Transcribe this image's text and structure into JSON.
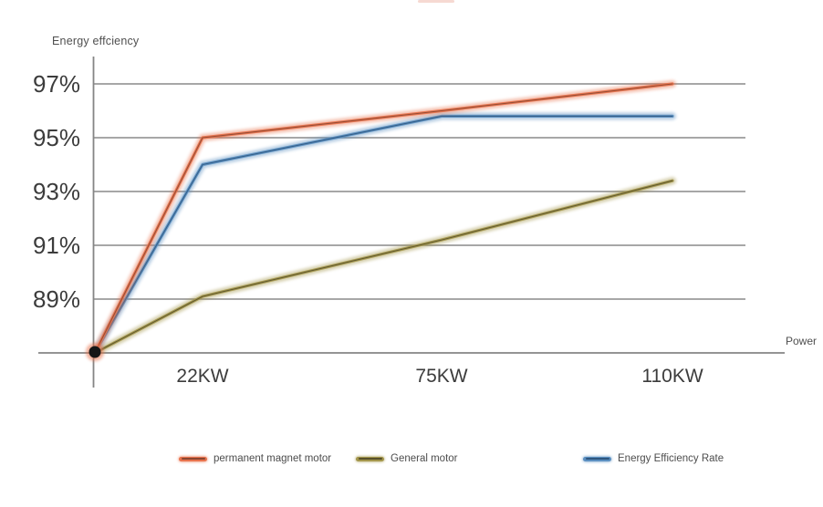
{
  "chart_data": {
    "type": "line",
    "title": "",
    "ylabel": "Energy effciency",
    "xlabel": "Power",
    "categories": [
      "origin",
      "22KW",
      "75KW",
      "110KW"
    ],
    "x_tick_labels": [
      "22KW",
      "75KW",
      "110KW"
    ],
    "y_tick_labels": [
      "97%",
      "95%",
      "93%",
      "91%",
      "89%"
    ],
    "y_tick_values": [
      97,
      95,
      93,
      91,
      89
    ],
    "ylim": [
      87,
      98.2
    ],
    "grid": true,
    "legend_position": "bottom",
    "series": [
      {
        "name": "permanent magnet motor",
        "color": "#e8734d",
        "core_color": "#8a4630",
        "values": [
          87,
          95,
          96,
          97
        ]
      },
      {
        "name": "General motor",
        "color": "#a3964b",
        "core_color": "#57502a",
        "values": [
          87,
          89.1,
          91.2,
          93.4
        ]
      },
      {
        "name": "Energy Efficiency Rate",
        "color": "#5b8fc0",
        "core_color": "#2e567f",
        "values": [
          87,
          94,
          95.8,
          95.8
        ]
      }
    ],
    "origin_marker": {
      "color": "#161616",
      "glow": "#e8734d"
    }
  },
  "colors": {
    "grid": "#8a8a8a",
    "axis": "#858585",
    "tick_text": "#3c3c3c",
    "small_text": "#4f4f4f"
  }
}
